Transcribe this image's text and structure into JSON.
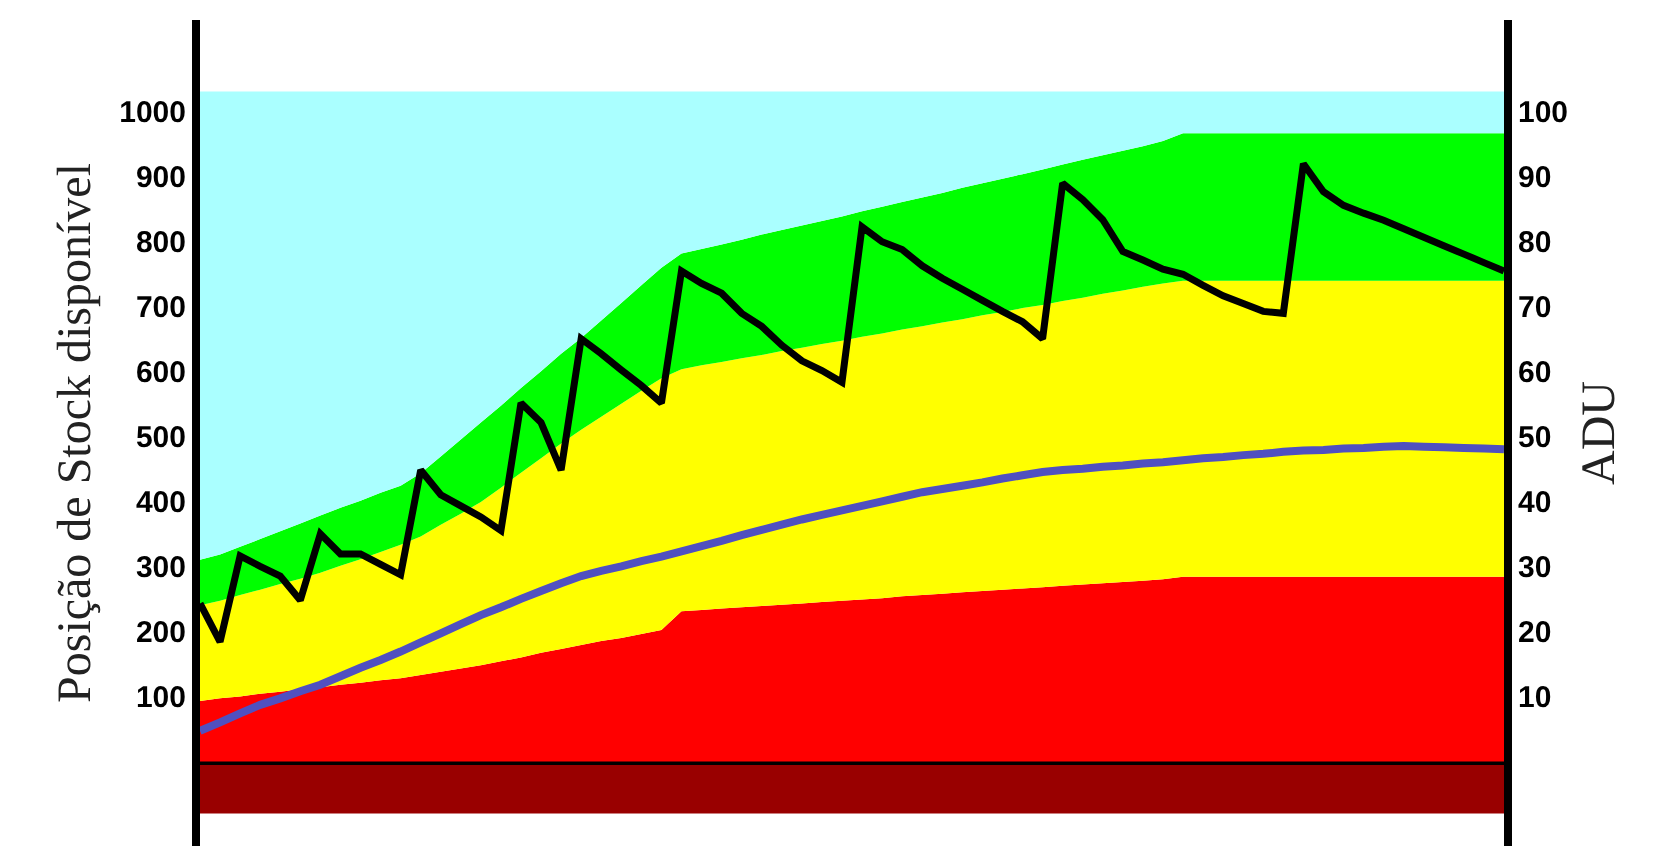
{
  "chart_data": {
    "type": "area",
    "stacked": true,
    "ylabel": "Posição de Stock disponível",
    "y2label": "ADU",
    "categories": [
      null,
      null,
      null,
      null,
      null,
      null,
      null,
      null,
      null,
      null,
      null,
      null,
      null,
      null,
      null,
      null,
      null,
      null,
      null,
      null,
      null,
      null,
      null,
      null,
      null,
      null,
      null,
      null,
      null,
      null,
      null,
      null,
      null,
      null,
      null,
      null,
      null,
      null,
      null,
      null,
      null,
      null,
      null,
      null,
      null,
      null,
      null,
      null,
      null,
      null,
      null,
      null,
      null,
      null,
      null,
      null,
      null,
      null,
      null,
      null,
      null,
      null,
      null,
      null,
      null,
      null
    ],
    "ylim": [
      -130,
      1140
    ],
    "yticks": [
      100,
      200,
      300,
      400,
      500,
      600,
      700,
      800,
      900,
      1000
    ],
    "y2lim": [
      -13,
      114
    ],
    "y2ticks": [
      10,
      20,
      30,
      40,
      50,
      60,
      70,
      80,
      90,
      100
    ],
    "tick_labels": "y",
    "series": [
      {
        "color": "#ff0000",
        "values": [
          93,
          97,
          100,
          104,
          107,
          111,
          114,
          118,
          121,
          125,
          128,
          133,
          138,
          143,
          148,
          154,
          160,
          167,
          173,
          179,
          185,
          190,
          196,
          202,
          231,
          233,
          235,
          237,
          239,
          241,
          243,
          245,
          247,
          249,
          251,
          254,
          256,
          258,
          260,
          262,
          264,
          266,
          268,
          270,
          272,
          274,
          276,
          278,
          280,
          284,
          284,
          284,
          284,
          284,
          284,
          284,
          284,
          284,
          284,
          284,
          284,
          284,
          284,
          284,
          284,
          284
        ]
      },
      {
        "color": "#ffff00",
        "values": [
          147,
          150,
          156,
          160,
          166,
          170,
          176,
          183,
          190,
          197,
          205,
          213,
          226,
          238,
          251,
          267,
          284,
          299,
          316,
          331,
          345,
          360,
          374,
          387,
          372,
          376,
          379,
          383,
          386,
          390,
          393,
          397,
          400,
          404,
          407,
          410,
          413,
          417,
          420,
          424,
          427,
          431,
          434,
          438,
          441,
          445,
          448,
          452,
          455,
          455,
          455,
          455,
          455,
          455,
          455,
          455,
          455,
          455,
          455,
          455,
          455,
          455,
          455,
          455,
          455,
          455
        ]
      },
      {
        "color": "#00ff00",
        "values": [
          70,
          71,
          74,
          78,
          81,
          85,
          88,
          89,
          90,
          91,
          91,
          97,
          105,
          114,
          122,
          126,
          130,
          134,
          138,
          141,
          148,
          155,
          162,
          170,
          178,
          179,
          181,
          182,
          185,
          186,
          188,
          189,
          191,
          193,
          195,
          196,
          198,
          199,
          202,
          203,
          205,
          206,
          208,
          210,
          212,
          213,
          215,
          216,
          219,
          227,
          227,
          227,
          227,
          227,
          227,
          227,
          227,
          227,
          227,
          227,
          227,
          227,
          227,
          227,
          227,
          227
        ]
      },
      {
        "color": "#aaffff",
        "values": [
          720,
          712,
          700,
          688,
          676,
          664,
          652,
          640,
          629,
          617,
          606,
          587,
          561,
          535,
          509,
          483,
          456,
          430,
          403,
          379,
          352,
          325,
          298,
          271,
          249,
          242,
          235,
          228,
          220,
          213,
          206,
          199,
          192,
          184,
          177,
          170,
          163,
          156,
          148,
          141,
          134,
          127,
          120,
          112,
          105,
          98,
          91,
          84,
          76,
          64,
          64,
          64,
          64,
          64,
          64,
          64,
          64,
          64,
          64,
          64,
          64,
          64,
          64,
          64,
          64,
          64
        ]
      },
      {
        "type": "line",
        "color": "#000000",
        "values": [
          243,
          184,
          316,
          300,
          285,
          248,
          350,
          319,
          319,
          303,
          287,
          448,
          410,
          393,
          376,
          355,
          551,
          521,
          448,
          650,
          627,
          602,
          578,
          551,
          754,
          735,
          720,
          689,
          669,
          640,
          616,
          601,
          583,
          822,
          799,
          787,
          762,
          743,
          726,
          709,
          692,
          676,
          650,
          889,
          864,
          833,
          784,
          771,
          757,
          749,
          732,
          716,
          704,
          692,
          689,
          919,
          876,
          855,
          843,
          832,
          819,
          806,
          793,
          780,
          767,
          754
        ]
      },
      {
        "type": "line",
        "axis": "y2",
        "color": "#5050c0",
        "values": [
          4.7,
          6.0,
          7.4,
          8.7,
          9.7,
          10.8,
          11.8,
          13.1,
          14.4,
          15.6,
          16.9,
          18.3,
          19.7,
          21.1,
          22.5,
          23.7,
          25.0,
          26.2,
          27.4,
          28.5,
          29.3,
          30.0,
          30.8,
          31.5,
          32.3,
          33.1,
          33.9,
          34.8,
          35.6,
          36.4,
          37.2,
          37.9,
          38.6,
          39.3,
          40.0,
          40.7,
          41.4,
          41.9,
          42.4,
          42.9,
          43.5,
          44.0,
          44.5,
          44.8,
          45.0,
          45.3,
          45.5,
          45.8,
          46.0,
          46.3,
          46.6,
          46.8,
          47.1,
          47.3,
          47.6,
          47.8,
          47.9,
          48.1,
          48.2,
          48.4,
          48.5,
          48.4,
          48.3,
          48.2,
          48.1,
          48.0
        ]
      }
    ],
    "bands": [
      {
        "axis": "y",
        "from": -80,
        "to": 0,
        "color": "#990000"
      }
    ]
  }
}
